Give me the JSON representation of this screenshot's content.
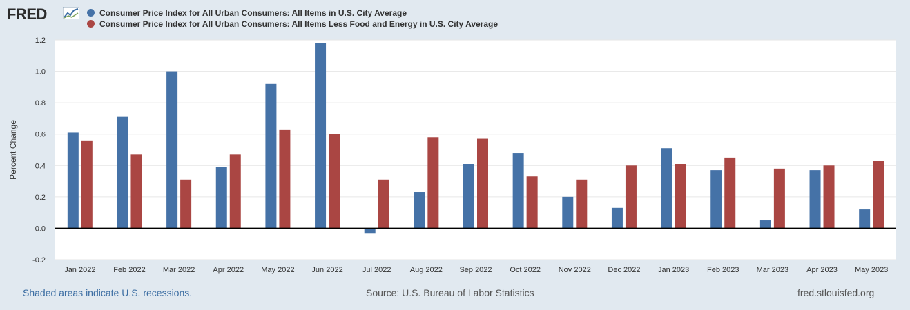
{
  "header": {
    "logo_text": "FRED",
    "logo_icon": "line-chart-icon"
  },
  "colors": {
    "series1": "#4572a7",
    "series2": "#aa4643",
    "background": "#e1e9f0",
    "plot_background": "#ffffff"
  },
  "chart_data": {
    "type": "bar",
    "ylabel": "Percent Change",
    "ylim": [
      -0.2,
      1.2
    ],
    "yticks": [
      "-0.2",
      "0.0",
      "0.2",
      "0.4",
      "0.6",
      "0.8",
      "1.0",
      "1.2"
    ],
    "grid": true,
    "legend_position": "top-left",
    "categories": [
      "Jan 2022",
      "Feb 2022",
      "Mar 2022",
      "Apr 2022",
      "May 2022",
      "Jun 2022",
      "Jul 2022",
      "Aug 2022",
      "Sep 2022",
      "Oct 2022",
      "Nov 2022",
      "Dec 2022",
      "Jan 2023",
      "Feb 2023",
      "Mar 2023",
      "Apr 2023",
      "May 2023"
    ],
    "series": [
      {
        "name": "Consumer Price Index for All Urban Consumers: All Items in U.S. City Average",
        "values": [
          0.61,
          0.71,
          1.0,
          0.39,
          0.92,
          1.18,
          -0.03,
          0.23,
          0.41,
          0.48,
          0.2,
          0.13,
          0.51,
          0.37,
          0.05,
          0.37,
          0.12
        ]
      },
      {
        "name": "Consumer Price Index for All Urban Consumers: All Items Less Food and Energy in U.S. City Average",
        "values": [
          0.56,
          0.47,
          0.31,
          0.47,
          0.63,
          0.6,
          0.31,
          0.58,
          0.57,
          0.33,
          0.31,
          0.4,
          0.41,
          0.45,
          0.38,
          0.4,
          0.43
        ]
      }
    ]
  },
  "footer": {
    "recessions_note": "Shaded areas indicate U.S. recessions.",
    "source": "Source: U.S. Bureau of Labor Statistics",
    "site": "fred.stlouisfed.org"
  }
}
